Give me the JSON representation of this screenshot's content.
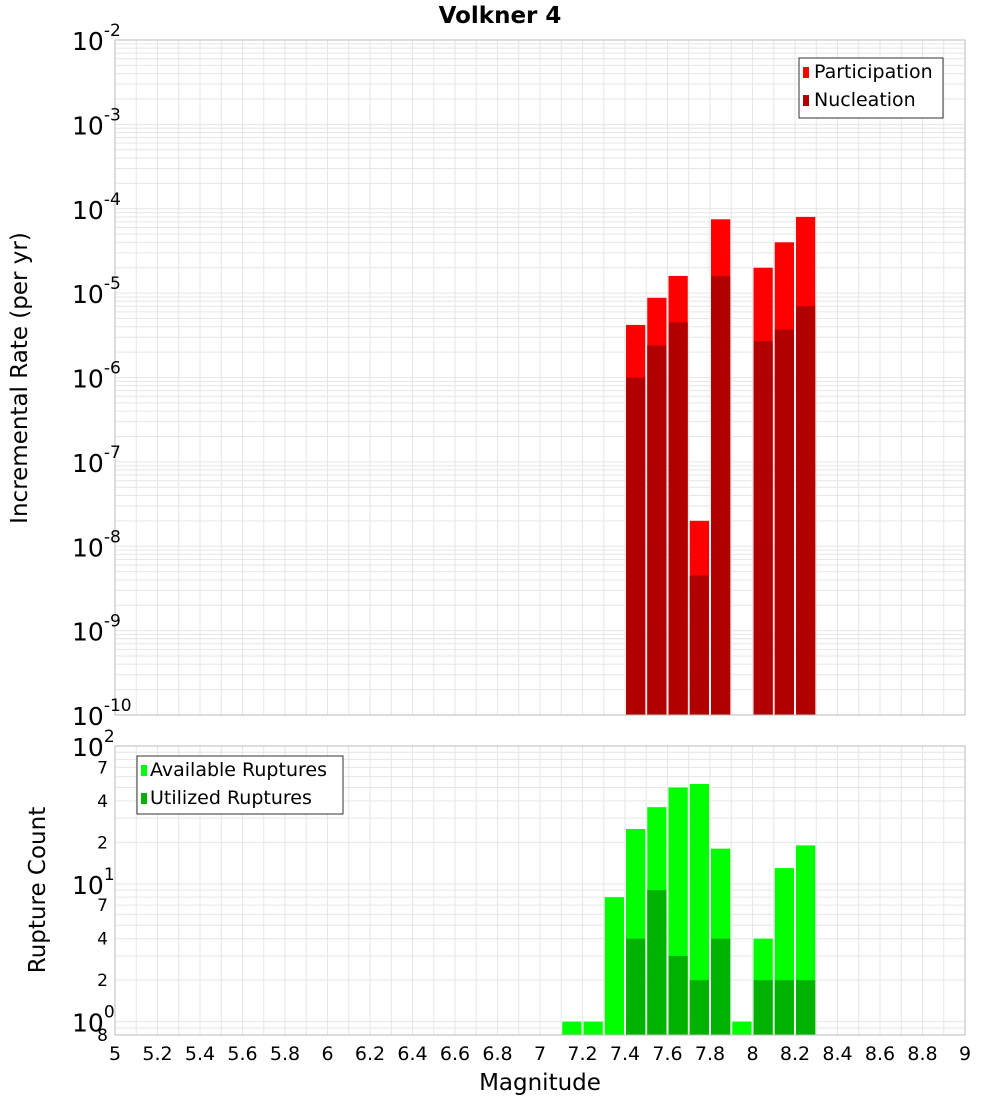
{
  "chart_data": [
    {
      "type": "bar",
      "stacked_overlay": true,
      "scale": "log",
      "title": "Volkner 4",
      "xlabel": "Magnitude",
      "ylabel": "Incremental Rate (per yr)",
      "xlim": [
        5,
        9
      ],
      "ylim": [
        1e-10,
        0.01
      ],
      "y_tick_exponents": [
        "-2",
        "-3",
        "-4",
        "-5",
        "-6",
        "-7",
        "-8",
        "-9",
        "-10"
      ],
      "y_tick_base": "10",
      "legend_position": "top-right",
      "x": [
        7.45,
        7.55,
        7.65,
        7.75,
        7.85,
        8.05,
        8.15,
        8.25
      ],
      "series": [
        {
          "name": "Participation",
          "color": "#ff0000",
          "values": [
            4.2e-06,
            8.8e-06,
            1.6e-05,
            2e-08,
            7.5e-05,
            2e-05,
            4e-05,
            8e-05
          ]
        },
        {
          "name": "Nucleation",
          "color": "#b20000",
          "values": [
            1e-06,
            2.4e-06,
            4.5e-06,
            4.5e-09,
            1.6e-05,
            2.7e-06,
            3.7e-06,
            7e-06
          ]
        }
      ]
    },
    {
      "type": "bar",
      "stacked_overlay": true,
      "scale": "log",
      "xlabel": "Magnitude",
      "ylabel": "Rupture Count",
      "xlim": [
        5,
        9
      ],
      "ylim": [
        0.8,
        100
      ],
      "y_major_ticks": [
        {
          "base": "10",
          "exp": "2",
          "value": 100
        },
        {
          "base": "10",
          "exp": "1",
          "value": 10
        },
        {
          "base": "10",
          "exp": "0",
          "value": 1
        }
      ],
      "y_minor_ticks": [
        {
          "label": "7",
          "value": 70
        },
        {
          "label": "4",
          "value": 40
        },
        {
          "label": "2",
          "value": 20
        },
        {
          "label": "7",
          "value": 7
        },
        {
          "label": "4",
          "value": 4
        },
        {
          "label": "2",
          "value": 2
        },
        {
          "label": "8",
          "value": 0.8
        }
      ],
      "legend_position": "top-left",
      "x": [
        7.15,
        7.25,
        7.35,
        7.45,
        7.55,
        7.65,
        7.75,
        7.85,
        7.95,
        8.05,
        8.15,
        8.25
      ],
      "series": [
        {
          "name": "Available Ruptures",
          "color": "#00ff00",
          "values": [
            1,
            1,
            8,
            25,
            36,
            50,
            53,
            18,
            1,
            4,
            13,
            19
          ]
        },
        {
          "name": "Utilized Ruptures",
          "color": "#00b200",
          "values": [
            0,
            0,
            0,
            4,
            9,
            3,
            2,
            4,
            0,
            2,
            2,
            2
          ]
        }
      ]
    }
  ],
  "x_ticks": [
    "5",
    "5.2",
    "5.4",
    "5.6",
    "5.8",
    "6",
    "6.2",
    "6.4",
    "6.6",
    "6.8",
    "7",
    "7.2",
    "7.4",
    "7.6",
    "7.8",
    "8",
    "8.2",
    "8.4",
    "8.6",
    "8.8",
    "9"
  ],
  "colors": {
    "grid": "#e6e6e6",
    "plot_border": "#bbbbbb",
    "legend_border": "#333333"
  }
}
